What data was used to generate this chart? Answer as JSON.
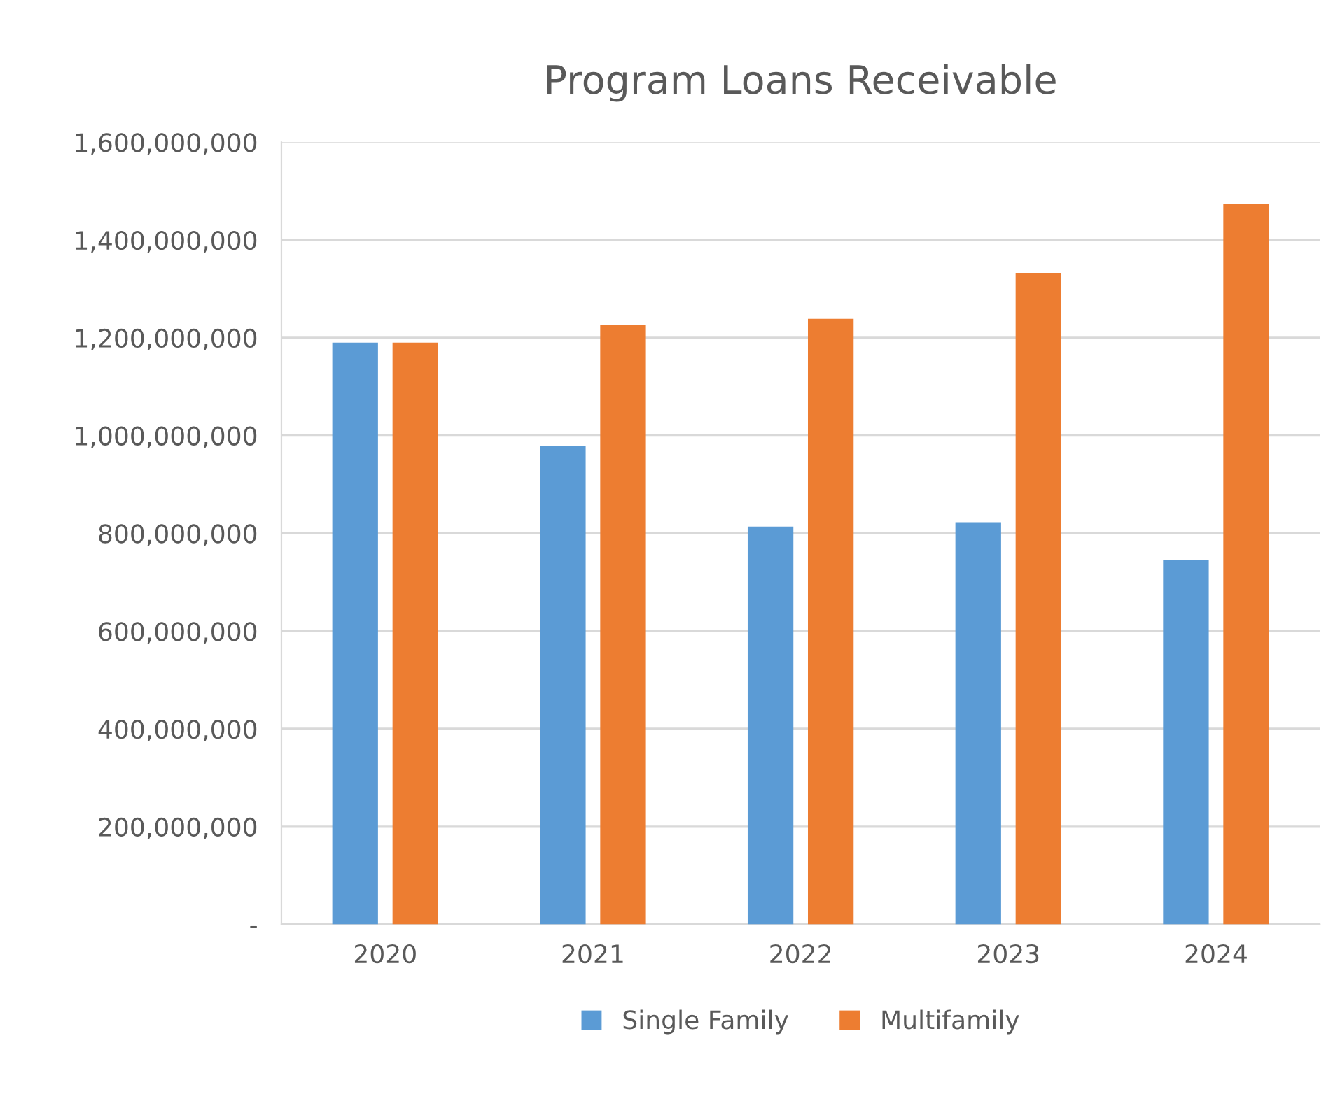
{
  "chart_data": {
    "type": "bar",
    "title": "Program Loans Receivable",
    "categories": [
      "2020",
      "2021",
      "2022",
      "2023",
      "2024"
    ],
    "series": [
      {
        "name": "Single Family",
        "color": "#5b9bd5",
        "values": [
          1190000000,
          978000000,
          814000000,
          823000000,
          746000000
        ]
      },
      {
        "name": "Multifamily",
        "color": "#ed7d31",
        "values": [
          1190000000,
          1227000000,
          1239000000,
          1333000000,
          1474000000
        ]
      }
    ],
    "ylim": [
      0,
      1600000000
    ],
    "yticks": [
      {
        "value": 0,
        "label": "-"
      },
      {
        "value": 200000000,
        "label": "200,000,000"
      },
      {
        "value": 400000000,
        "label": "400,000,000"
      },
      {
        "value": 600000000,
        "label": "600,000,000"
      },
      {
        "value": 800000000,
        "label": "800,000,000"
      },
      {
        "value": 1000000000,
        "label": "1,000,000,000"
      },
      {
        "value": 1200000000,
        "label": "1,200,000,000"
      },
      {
        "value": 1400000000,
        "label": "1,400,000,000"
      },
      {
        "value": 1600000000,
        "label": "1,600,000,000"
      }
    ],
    "grid": "y",
    "legend": "bottom"
  }
}
